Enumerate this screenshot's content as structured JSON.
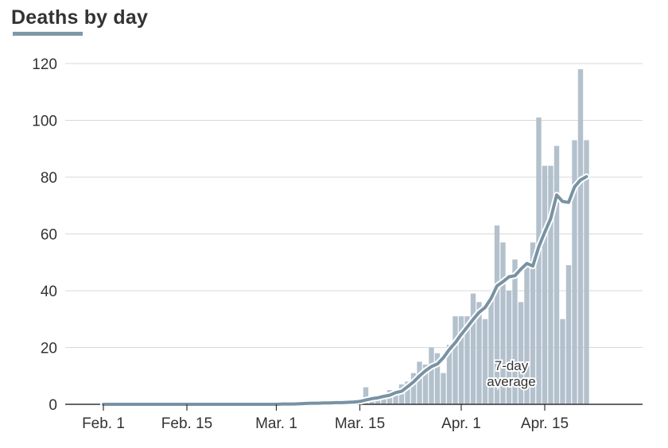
{
  "chart_data": {
    "type": "bar",
    "title": "Deaths by day",
    "xlabel": "",
    "ylabel": "",
    "ylim": [
      0,
      120
    ],
    "yticks": [
      0,
      20,
      40,
      60,
      80,
      100,
      120
    ],
    "x_start": "Feb. 1",
    "x_end": "Apr. 21",
    "xticks": [
      {
        "label": "Feb. 1",
        "day": 0
      },
      {
        "label": "Feb. 15",
        "day": 14
      },
      {
        "label": "Mar. 1",
        "day": 29
      },
      {
        "label": "Mar. 15",
        "day": 43
      },
      {
        "label": "Apr. 1",
        "day": 60
      },
      {
        "label": "Apr. 15",
        "day": 74
      }
    ],
    "grid": true,
    "colors": {
      "bars": "#b3c1cd",
      "line": "#7892a3",
      "line_halo": "#ffffff"
    },
    "series": [
      {
        "name": "Deaths",
        "kind": "bar",
        "values": [
          0,
          0,
          0,
          0,
          0,
          0,
          0,
          0,
          0,
          0,
          0,
          0,
          0,
          0,
          0,
          0,
          0,
          0,
          0,
          0,
          0,
          0,
          0,
          0,
          0,
          0,
          0,
          0,
          0,
          0,
          0,
          0,
          0,
          0,
          0,
          0,
          0,
          0,
          0,
          0,
          0,
          0,
          1,
          1,
          6,
          1,
          3,
          3,
          5,
          4,
          7,
          8,
          11,
          15,
          14,
          20,
          18,
          11,
          21,
          31,
          31,
          31,
          39,
          36,
          30,
          37,
          63,
          57,
          40,
          51,
          36,
          49,
          57,
          101,
          84,
          84,
          91,
          30,
          49,
          93,
          118,
          93
        ]
      },
      {
        "name": "7-day average",
        "kind": "line",
        "values": [
          0,
          0,
          0,
          0,
          0,
          0,
          0,
          0,
          0,
          0,
          0,
          0,
          0,
          0,
          0,
          0,
          0,
          0,
          0,
          0,
          0,
          0,
          0,
          0,
          0,
          0,
          0,
          0,
          0,
          0,
          0.1,
          0.1,
          0.1,
          0.2,
          0.3,
          0.4,
          0.4,
          0.5,
          0.5,
          0.6,
          0.6,
          0.7,
          0.8,
          1,
          1.5,
          2,
          2.3,
          2.8,
          3.2,
          4.1,
          4.6,
          6.2,
          7.9,
          10,
          11.8,
          13.3,
          14.2,
          16.4,
          19.3,
          21.7,
          24.6,
          27.2,
          29.9,
          32.4,
          34.1,
          37.3,
          41.7,
          43.2,
          44.9,
          45.3,
          47.6,
          49.6,
          48.7,
          55.5,
          60.6,
          65.4,
          73.7,
          71.4,
          71.1,
          76.6,
          79,
          80.2
        ]
      }
    ],
    "annotations": [
      {
        "text_line1": "7-day",
        "text_line2": "average"
      }
    ]
  }
}
